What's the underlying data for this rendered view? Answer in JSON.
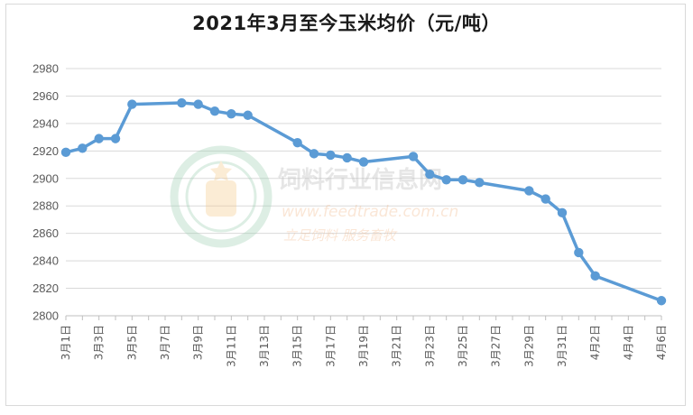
{
  "chart_data": {
    "type": "line",
    "title": "2021年3月至今玉米均价（元/吨）",
    "xlabel": "",
    "ylabel": "",
    "ylim": [
      2800,
      2980
    ],
    "yticks": [
      2800,
      2820,
      2840,
      2860,
      2880,
      2900,
      2920,
      2940,
      2960,
      2980
    ],
    "xlim_days": [
      1,
      37
    ],
    "x_tick_labels": [
      "3月1日",
      "3月3日",
      "3月5日",
      "3月7日",
      "3月9日",
      "3月11日",
      "3月13日",
      "3月15日",
      "3月17日",
      "3月19日",
      "3月21日",
      "3月23日",
      "3月25日",
      "3月27日",
      "3月29日",
      "3月31日",
      "4月2日",
      "4月4日",
      "4月6日"
    ],
    "grid": true,
    "legend": "none",
    "color": "#5b9bd5",
    "series": [
      {
        "points": [
          {
            "x": "3月1日",
            "y": 2919
          },
          {
            "x": "3月2日",
            "y": 2922
          },
          {
            "x": "3月3日",
            "y": 2929
          },
          {
            "x": "3月4日",
            "y": 2929
          },
          {
            "x": "3月5日",
            "y": 2954
          },
          {
            "x": "3月8日",
            "y": 2955
          },
          {
            "x": "3月9日",
            "y": 2954
          },
          {
            "x": "3月10日",
            "y": 2949
          },
          {
            "x": "3月11日",
            "y": 2947
          },
          {
            "x": "3月12日",
            "y": 2946
          },
          {
            "x": "3月15日",
            "y": 2926
          },
          {
            "x": "3月16日",
            "y": 2918
          },
          {
            "x": "3月17日",
            "y": 2917
          },
          {
            "x": "3月18日",
            "y": 2915
          },
          {
            "x": "3月19日",
            "y": 2912
          },
          {
            "x": "3月22日",
            "y": 2916
          },
          {
            "x": "3月23日",
            "y": 2903
          },
          {
            "x": "3月24日",
            "y": 2899
          },
          {
            "x": "3月25日",
            "y": 2899
          },
          {
            "x": "3月26日",
            "y": 2897
          },
          {
            "x": "3月29日",
            "y": 2891
          },
          {
            "x": "3月30日",
            "y": 2885
          },
          {
            "x": "3月31日",
            "y": 2875
          },
          {
            "x": "4月1日",
            "y": 2846
          },
          {
            "x": "4月2日",
            "y": 2829
          },
          {
            "x": "4月6日",
            "y": 2811
          }
        ]
      }
    ]
  },
  "watermark": {
    "name": "饲料行业信息网",
    "url": "www.feedtrade.com.cn",
    "slogan": "立足饲料  服务畜牧"
  }
}
